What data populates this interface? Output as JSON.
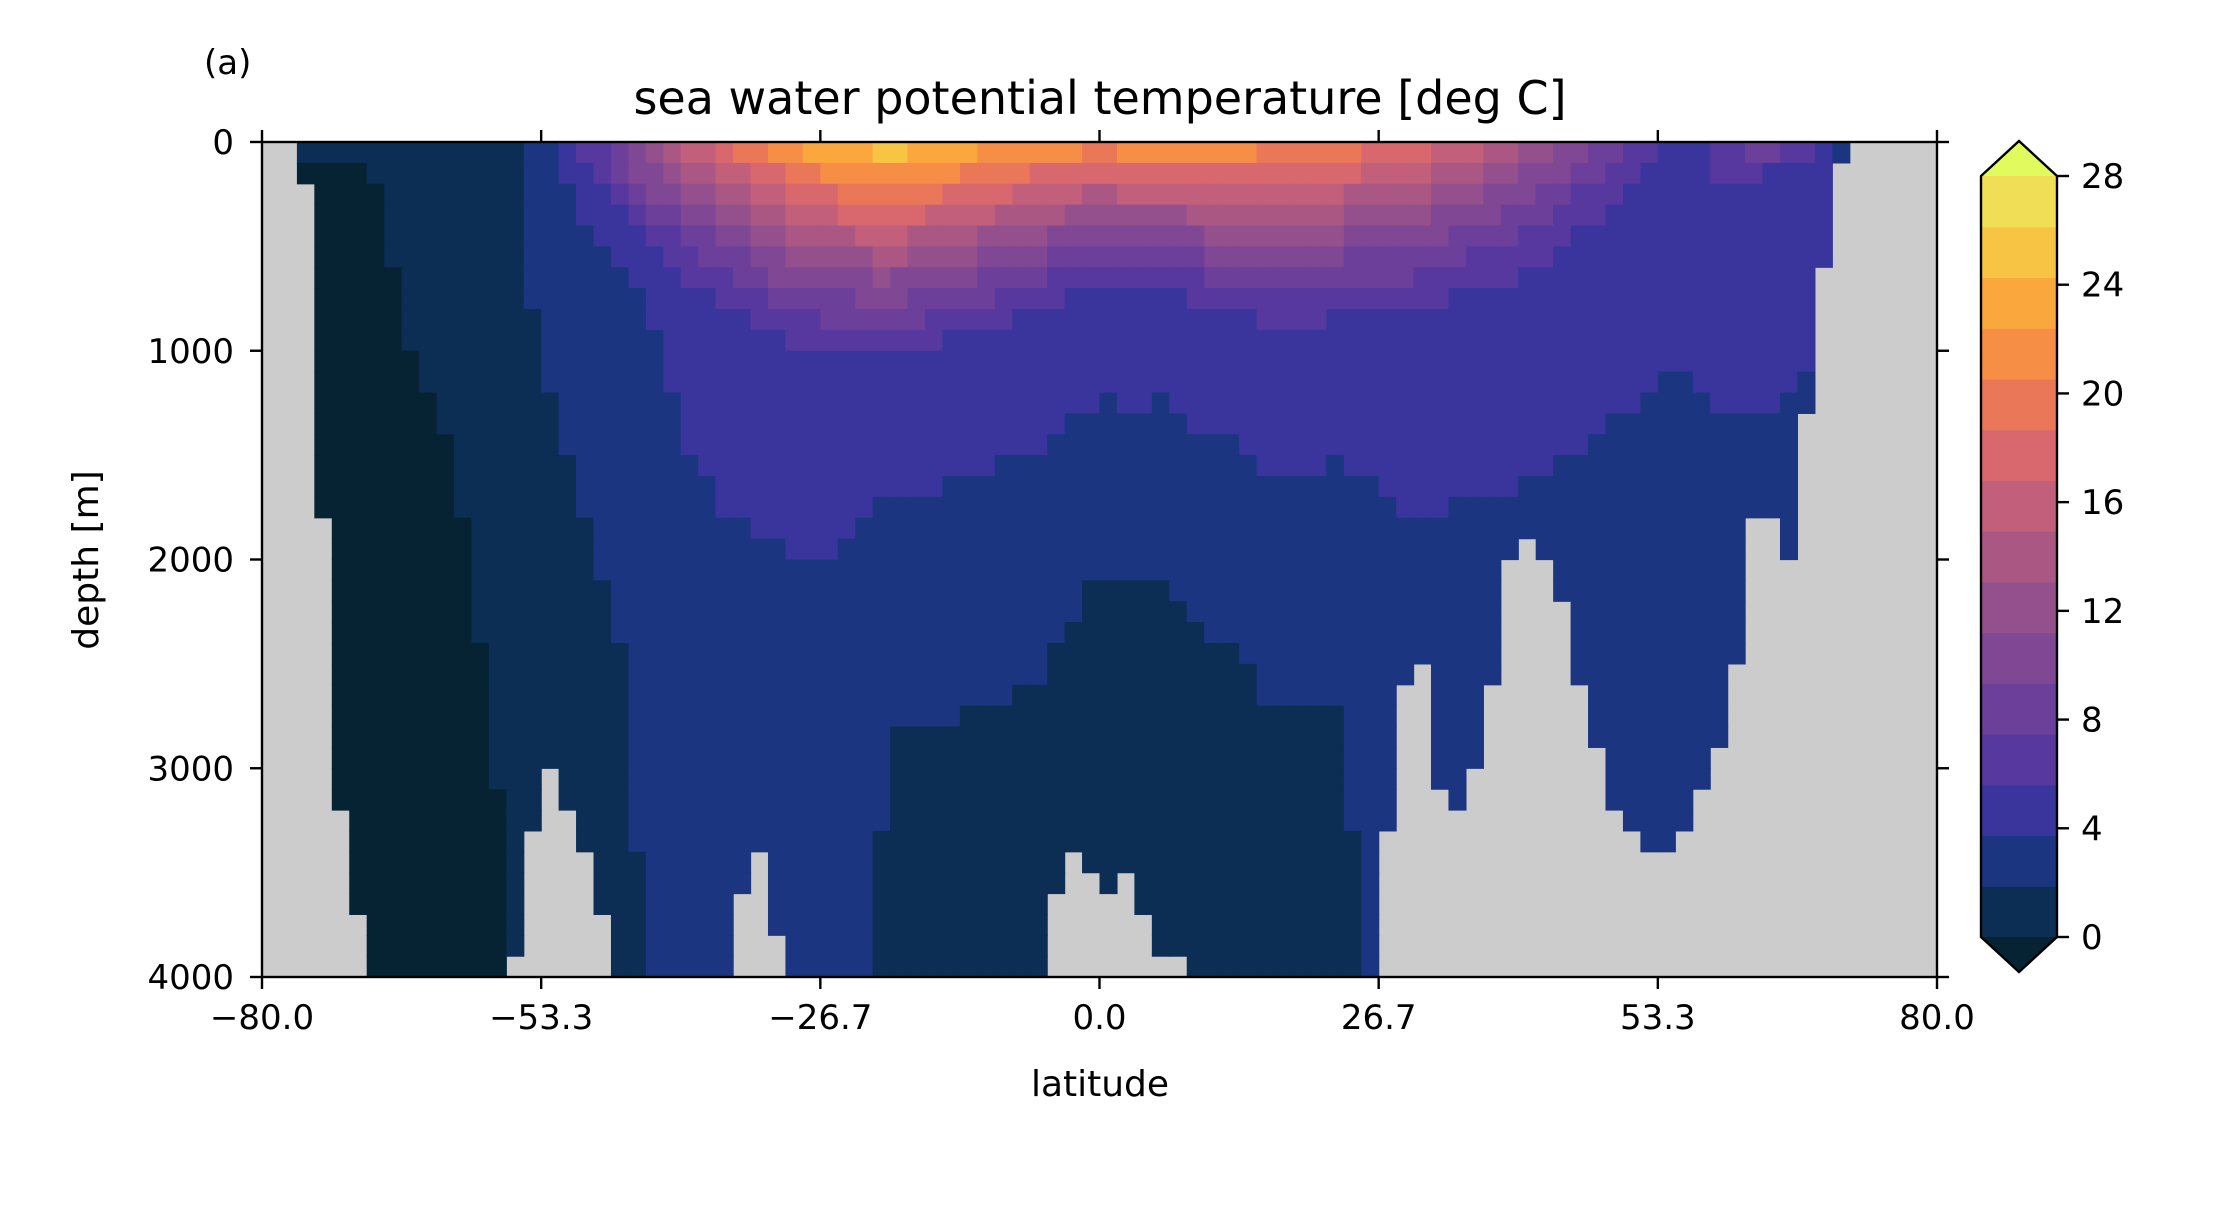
{
  "panel_label": "(a)",
  "chart_data": {
    "type": "heatmap",
    "title": "sea water potential temperature [deg C]",
    "xlabel": "latitude",
    "ylabel": "depth [m]",
    "xlim": [
      -80,
      80
    ],
    "ylim": [
      4000,
      0
    ],
    "xticks": [
      "−80.0",
      "−53.3",
      "−26.7",
      "0.0",
      "26.7",
      "53.3",
      "80.0"
    ],
    "yticks": [
      "0",
      "1000",
      "2000",
      "3000",
      "4000"
    ],
    "missing_color": "#cccccc",
    "colorbar": {
      "ticks": [
        "0",
        "4",
        "8",
        "12",
        "16",
        "20",
        "24",
        "28"
      ],
      "levels": [
        -2,
        0,
        2,
        4,
        6,
        8,
        10,
        12,
        14,
        16,
        18,
        20,
        22,
        24,
        26,
        28,
        30
      ],
      "colors": [
        "#062333",
        "#0c2d54",
        "#1b3580",
        "#3a359c",
        "#56389f",
        "#6c3f9a",
        "#7f4794",
        "#94508c",
        "#ab5784",
        "#c25f7a",
        "#d8686d",
        "#ea7858",
        "#f68e46",
        "#faa73d",
        "#f8c444",
        "#f1de57",
        "#e1fa5e"
      ],
      "extend": "both"
    },
    "profiles": {
      "lats": [
        -80,
        -76,
        -73,
        -70,
        -66,
        -63,
        -60,
        -56,
        -53,
        -50,
        -46,
        -43,
        -40,
        -36,
        -33,
        -30,
        -26,
        -23,
        -20,
        -16,
        -13,
        -10,
        -6,
        -3,
        0,
        3,
        6,
        10,
        13,
        16,
        20,
        23,
        26,
        30,
        33,
        36,
        40,
        43,
        46,
        50,
        53,
        56,
        60,
        63,
        66,
        70,
        73,
        76,
        80
      ],
      "bottom": [
        0,
        0,
        3000,
        4000,
        4000,
        4000,
        4000,
        4000,
        2900,
        3300,
        4000,
        4000,
        4000,
        4000,
        3300,
        4000,
        4000,
        4000,
        4000,
        4000,
        4000,
        4000,
        4000,
        3400,
        3600,
        3500,
        3900,
        4000,
        4000,
        4000,
        4000,
        4000,
        4000,
        2200,
        3300,
        3000,
        1800,
        2000,
        2600,
        3300,
        3400,
        3300,
        2800,
        1600,
        2000,
        200,
        0,
        0,
        0
      ],
      "thermocline": [
        0,
        0,
        0,
        0,
        150,
        200,
        300,
        400,
        500,
        550,
        650,
        750,
        800,
        900,
        1000,
        1100,
        1150,
        1150,
        1150,
        1100,
        1050,
        1000,
        900,
        850,
        800,
        850,
        800,
        900,
        950,
        1000,
        1000,
        950,
        950,
        950,
        900,
        850,
        800,
        700,
        600,
        450,
        300,
        250,
        200,
        150,
        100,
        50,
        0,
        0,
        0
      ],
      "upper": [
        0,
        0,
        0,
        0,
        0,
        0,
        0,
        1,
        3,
        6,
        10,
        14,
        17,
        20,
        22,
        24,
        26,
        27,
        28,
        27,
        26,
        25,
        24,
        24,
        23,
        24,
        24,
        24,
        24,
        23,
        23,
        22,
        21,
        20,
        18,
        17,
        15,
        13,
        11,
        9,
        7,
        5,
        8,
        10,
        10,
        6,
        0,
        0,
        0
      ],
      "mid": [
        0,
        0,
        0,
        0,
        0.5,
        1,
        1.5,
        2,
        2.5,
        3,
        3.5,
        4,
        4.5,
        5,
        5,
        5,
        5,
        5,
        5,
        5,
        5,
        5,
        5,
        5,
        5,
        5,
        5,
        5,
        5,
        5,
        5,
        5,
        5,
        5,
        5,
        5,
        5,
        5,
        5,
        5,
        5,
        5,
        6,
        6,
        6,
        5,
        0,
        0,
        0
      ],
      "deep": [
        0,
        0,
        -1,
        -1,
        -0.5,
        -0.5,
        0,
        0.5,
        1,
        1.5,
        2,
        2.5,
        3,
        3,
        3,
        3,
        3,
        2.5,
        2,
        2,
        2,
        2,
        2,
        1.5,
        1,
        1,
        1,
        1.5,
        1.5,
        2,
        2,
        2,
        2.5,
        3,
        3,
        3,
        3,
        3,
        3,
        3,
        3,
        3,
        3,
        3,
        3,
        3,
        0,
        0,
        0
      ]
    }
  }
}
